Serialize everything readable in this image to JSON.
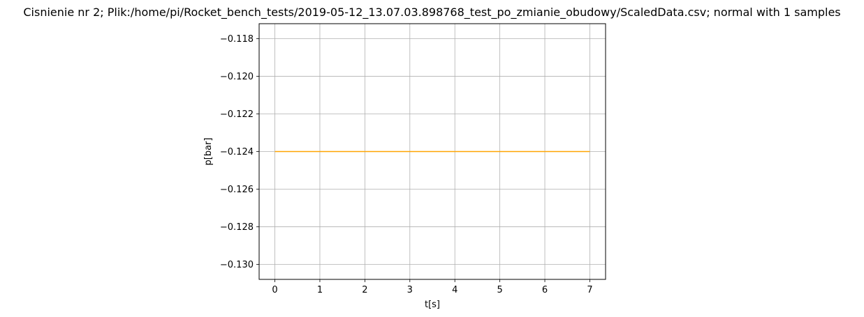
{
  "chart_data": {
    "type": "line",
    "title": "Cisnienie nr 2; Plik:/home/pi/Rocket_bench_tests/2019-05-12_13.07.03.898768_test_po_zmianie_obudowy/ScaledData.csv; normal with 1 samples",
    "xlabel": "t[s]",
    "ylabel": "p[bar]",
    "xlim": [
      -0.35,
      7.35
    ],
    "ylim": [
      -0.1308,
      -0.1172
    ],
    "grid": true,
    "xticks": [
      0,
      1,
      2,
      3,
      4,
      5,
      6,
      7
    ],
    "xtick_labels": [
      "0",
      "1",
      "2",
      "3",
      "4",
      "5",
      "6",
      "7"
    ],
    "yticks": [
      -0.118,
      -0.12,
      -0.122,
      -0.124,
      -0.126,
      -0.128,
      -0.13
    ],
    "ytick_labels": [
      "−0.118",
      "−0.120",
      "−0.122",
      "−0.124",
      "−0.126",
      "−0.128",
      "−0.130"
    ],
    "series": [
      {
        "name": "p",
        "color": "#ffa500",
        "x": [
          0,
          7
        ],
        "y": [
          -0.124,
          -0.124
        ]
      }
    ]
  }
}
